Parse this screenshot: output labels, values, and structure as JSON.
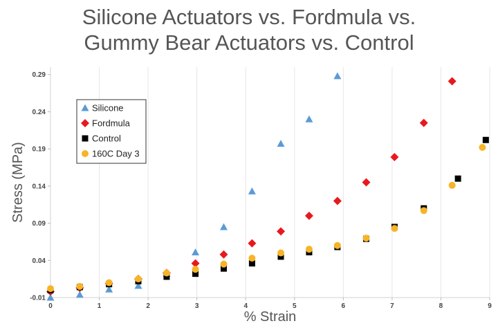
{
  "chart_data": {
    "type": "scatter",
    "title_lines": [
      "Silicone Actuators vs. Fordmula vs.",
      "Gummy Bear Actuators vs. Control"
    ],
    "xlabel": "% Strain",
    "ylabel": "Stress (MPa)",
    "xlim": [
      0,
      9
    ],
    "ylim": [
      -0.01,
      0.3
    ],
    "x_ticks": [
      0,
      1,
      2,
      3,
      4,
      5,
      6,
      7,
      8,
      9
    ],
    "y_ticks": [
      -0.01,
      0.04,
      0.09,
      0.14,
      0.19,
      0.24,
      0.29
    ],
    "y_tick_labels": [
      "-0.01",
      "0.04",
      "0.09",
      "0.14",
      "0.19",
      "0.24",
      "0.29"
    ],
    "grid": "vertical",
    "legend_position": "upper-left",
    "series": [
      {
        "name": "Silicone",
        "marker": "triangle",
        "color": "#5b9bd5",
        "points": [
          [
            0.0,
            -0.01
          ],
          [
            0.6,
            -0.006
          ],
          [
            1.2,
            0.001
          ],
          [
            1.8,
            0.006
          ],
          [
            2.38,
            0.022
          ],
          [
            2.97,
            0.051
          ],
          [
            3.55,
            0.085
          ],
          [
            4.13,
            0.133
          ],
          [
            4.72,
            0.197
          ],
          [
            5.3,
            0.23
          ],
          [
            5.88,
            0.288
          ]
        ]
      },
      {
        "name": "Fordmula",
        "marker": "diamond",
        "color": "#e8191e",
        "points": [
          [
            0.0,
            -0.002
          ],
          [
            0.6,
            0.003
          ],
          [
            1.2,
            0.009
          ],
          [
            1.8,
            0.015
          ],
          [
            2.38,
            0.023
          ],
          [
            2.97,
            0.036
          ],
          [
            3.55,
            0.048
          ],
          [
            4.13,
            0.063
          ],
          [
            4.72,
            0.079
          ],
          [
            5.3,
            0.1
          ],
          [
            5.88,
            0.12
          ],
          [
            6.47,
            0.145
          ],
          [
            7.05,
            0.179
          ],
          [
            7.65,
            0.225
          ],
          [
            8.23,
            0.281
          ]
        ]
      },
      {
        "name": "Control",
        "marker": "square",
        "color": "#000000",
        "points": [
          [
            0.0,
            0.0
          ],
          [
            0.6,
            0.004
          ],
          [
            1.2,
            0.008
          ],
          [
            1.8,
            0.012
          ],
          [
            2.38,
            0.018
          ],
          [
            2.97,
            0.022
          ],
          [
            3.55,
            0.029
          ],
          [
            4.13,
            0.036
          ],
          [
            4.72,
            0.045
          ],
          [
            5.3,
            0.051
          ],
          [
            5.88,
            0.058
          ],
          [
            6.47,
            0.069
          ],
          [
            7.05,
            0.085
          ],
          [
            7.65,
            0.11
          ],
          [
            8.35,
            0.15
          ],
          [
            8.92,
            0.202
          ]
        ]
      },
      {
        "name": "160C Day 3",
        "marker": "circle",
        "color": "#f7b428",
        "points": [
          [
            0.0,
            0.002
          ],
          [
            0.6,
            0.005
          ],
          [
            1.2,
            0.01
          ],
          [
            1.8,
            0.015
          ],
          [
            2.38,
            0.023
          ],
          [
            2.97,
            0.028
          ],
          [
            3.55,
            0.035
          ],
          [
            4.13,
            0.043
          ],
          [
            4.72,
            0.05
          ],
          [
            5.3,
            0.055
          ],
          [
            5.88,
            0.06
          ],
          [
            6.47,
            0.07
          ],
          [
            7.05,
            0.083
          ],
          [
            7.65,
            0.107
          ],
          [
            8.23,
            0.141
          ],
          [
            8.85,
            0.192
          ]
        ]
      }
    ]
  }
}
